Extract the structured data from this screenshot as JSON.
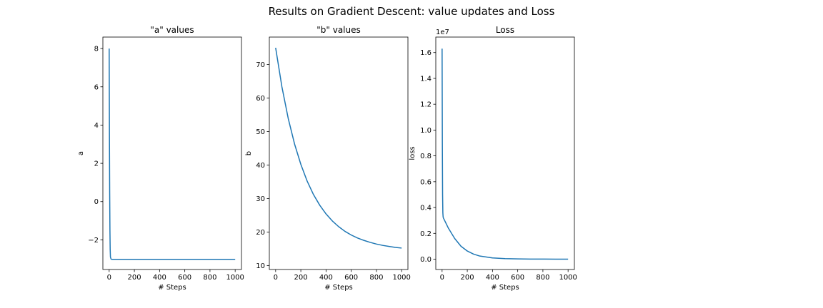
{
  "figure": {
    "suptitle": "Results on Gradient Descent: value updates and Loss"
  },
  "colors": {
    "line": "#1f77b4",
    "axes": "#000000",
    "background": "#ffffff"
  },
  "chart_data": [
    {
      "type": "line",
      "title": "\"a\" values",
      "xlabel": "# Steps",
      "ylabel": "a",
      "xlim": [
        -50,
        1050
      ],
      "ylim": [
        -3.55,
        8.6
      ],
      "xticks": [
        0,
        200,
        400,
        600,
        800,
        1000
      ],
      "yticks": [
        -2,
        0,
        2,
        4,
        6,
        8
      ],
      "ytick_labels": [
        "−2",
        "0",
        "2",
        "4",
        "6",
        "8"
      ],
      "offset_text": "",
      "grid": false,
      "series": [
        {
          "x": [
            0,
            2,
            4,
            6,
            8,
            10,
            15,
            20,
            50,
            100,
            200,
            400,
            600,
            800,
            1000
          ],
          "y": [
            8.0,
            3.5,
            0.5,
            -1.5,
            -2.5,
            -2.9,
            -3.0,
            -3.02,
            -3.02,
            -3.02,
            -3.02,
            -3.02,
            -3.02,
            -3.02,
            -3.02
          ]
        }
      ]
    },
    {
      "type": "line",
      "title": "\"b\" values",
      "xlabel": "# Steps",
      "ylabel": "b",
      "xlim": [
        -50,
        1050
      ],
      "ylim": [
        8.8,
        78.2
      ],
      "xticks": [
        0,
        200,
        400,
        600,
        800,
        1000
      ],
      "yticks": [
        10,
        20,
        30,
        40,
        50,
        60,
        70
      ],
      "ytick_labels": [
        "10",
        "20",
        "30",
        "40",
        "50",
        "60",
        "70"
      ],
      "offset_text": "",
      "grid": false,
      "series": [
        {
          "x": [
            0,
            50,
            100,
            150,
            200,
            250,
            300,
            350,
            400,
            450,
            500,
            550,
            600,
            650,
            700,
            750,
            800,
            850,
            900,
            950,
            1000
          ],
          "y": [
            75.0,
            63.3,
            53.9,
            46.3,
            40.2,
            35.2,
            31.2,
            28.0,
            25.4,
            23.3,
            21.6,
            20.2,
            19.1,
            18.2,
            17.5,
            16.9,
            16.4,
            16.0,
            15.7,
            15.4,
            15.2
          ]
        }
      ]
    },
    {
      "type": "line",
      "title": "Loss",
      "xlabel": "# Steps",
      "ylabel": "loss",
      "xlim": [
        -50,
        1050
      ],
      "ylim": [
        -800000.0,
        17200000.0
      ],
      "xticks": [
        0,
        200,
        400,
        600,
        800,
        1000
      ],
      "yticks": [
        0,
        2000000,
        4000000,
        6000000,
        8000000,
        10000000,
        12000000,
        14000000,
        16000000
      ],
      "ytick_labels": [
        "0.0",
        "0.2",
        "0.4",
        "0.6",
        "0.8",
        "1.0",
        "1.2",
        "1.4",
        "1.6"
      ],
      "offset_text": "1e7",
      "grid": false,
      "series": [
        {
          "x": [
            0,
            2,
            4,
            6,
            8,
            10,
            20,
            50,
            100,
            150,
            200,
            250,
            300,
            400,
            500,
            600,
            700,
            800,
            900,
            1000
          ],
          "y": [
            16300000,
            9000000,
            5000000,
            3600000,
            3300000,
            3200000,
            3000000,
            2400000,
            1600000,
            1000000,
            630000,
            390000,
            240000,
            100000,
            45000,
            20000,
            10000,
            5000,
            2500,
            1000
          ]
        }
      ]
    }
  ]
}
